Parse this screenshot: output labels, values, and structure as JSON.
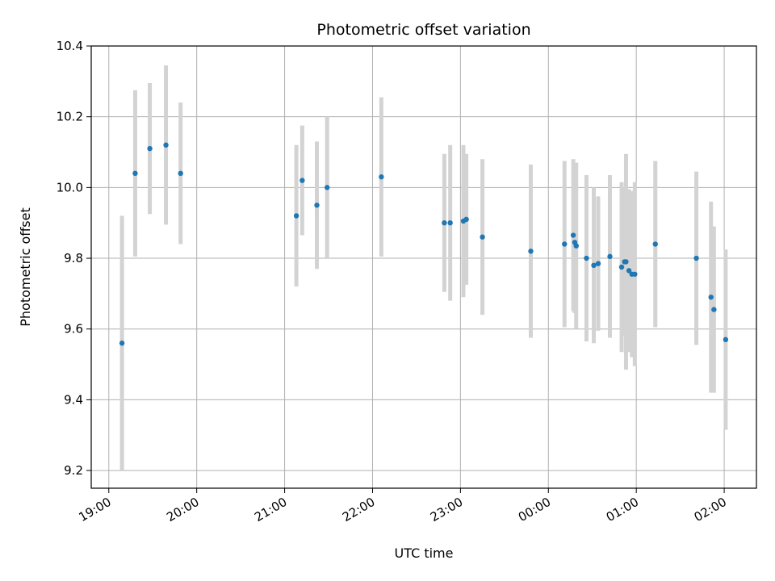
{
  "chart_data": {
    "type": "scatter",
    "title": "Photometric offset variation",
    "xlabel": "UTC time",
    "ylabel": "Photometric offset",
    "x_unit": "UTC time (HH:MM)",
    "x_ticks": [
      "19:00",
      "20:00",
      "21:00",
      "22:00",
      "23:00",
      "00:00",
      "01:00",
      "02:00"
    ],
    "x_range": [
      "18:48",
      "02:22"
    ],
    "ylim": [
      9.15,
      10.4
    ],
    "y_ticks": [
      "9.2",
      "9.4",
      "9.6",
      "9.8",
      "10.0",
      "10.2",
      "10.4"
    ],
    "grid": true,
    "point_color": "#1f77b4",
    "errorbar_color": "#d3d3d3",
    "points": [
      {
        "x": "19:09",
        "y": 9.56,
        "err": 0.36
      },
      {
        "x": "19:18",
        "y": 10.04,
        "err": 0.235
      },
      {
        "x": "19:28",
        "y": 10.11,
        "err": 0.185
      },
      {
        "x": "19:39",
        "y": 10.12,
        "err": 0.225
      },
      {
        "x": "19:49",
        "y": 10.04,
        "err": 0.2
      },
      {
        "x": "21:08",
        "y": 9.92,
        "err": 0.2
      },
      {
        "x": "21:12",
        "y": 10.02,
        "err": 0.155
      },
      {
        "x": "21:22",
        "y": 9.95,
        "err": 0.18
      },
      {
        "x": "21:29",
        "y": 10.0,
        "err": 0.2
      },
      {
        "x": "22:06",
        "y": 10.03,
        "err": 0.225
      },
      {
        "x": "22:49",
        "y": 9.9,
        "err": 0.195
      },
      {
        "x": "22:53",
        "y": 9.9,
        "err": 0.22
      },
      {
        "x": "23:02",
        "y": 9.905,
        "err": 0.215
      },
      {
        "x": "23:04",
        "y": 9.91,
        "err": 0.185
      },
      {
        "x": "23:15",
        "y": 9.86,
        "err": 0.22
      },
      {
        "x": "23:48",
        "y": 9.82,
        "err": 0.245
      },
      {
        "x": "00:11",
        "y": 9.84,
        "err": 0.235
      },
      {
        "x": "00:17",
        "y": 9.865,
        "err": 0.215
      },
      {
        "x": "00:18",
        "y": 9.845,
        "err": 0.2
      },
      {
        "x": "00:19",
        "y": 9.835,
        "err": 0.235
      },
      {
        "x": "00:26",
        "y": 9.8,
        "err": 0.235
      },
      {
        "x": "00:31",
        "y": 9.78,
        "err": 0.22
      },
      {
        "x": "00:34",
        "y": 9.785,
        "err": 0.19
      },
      {
        "x": "00:42",
        "y": 9.805,
        "err": 0.23
      },
      {
        "x": "00:50",
        "y": 9.775,
        "err": 0.24
      },
      {
        "x": "00:52",
        "y": 9.79,
        "err": 0.21
      },
      {
        "x": "00:53",
        "y": 9.79,
        "err": 0.305
      },
      {
        "x": "00:55",
        "y": 9.765,
        "err": 0.23
      },
      {
        "x": "00:57",
        "y": 9.755,
        "err": 0.235
      },
      {
        "x": "00:59",
        "y": 9.755,
        "err": 0.26
      },
      {
        "x": "01:13",
        "y": 9.84,
        "err": 0.235
      },
      {
        "x": "01:41",
        "y": 9.8,
        "err": 0.245
      },
      {
        "x": "01:51",
        "y": 9.69,
        "err": 0.27
      },
      {
        "x": "01:53",
        "y": 9.655,
        "err": 0.235
      },
      {
        "x": "02:01",
        "y": 9.57,
        "err": 0.255
      }
    ]
  }
}
